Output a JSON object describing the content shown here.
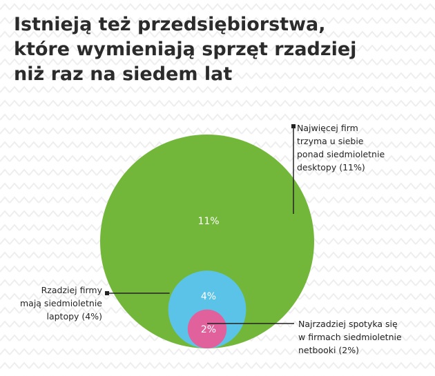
{
  "chart_data": {
    "type": "bubble",
    "title": [
      "Istnieją też przedsiębiorstwa,",
      "które wymieniają sprzęt rzadziej",
      "niż raz na siedem lat"
    ],
    "values": [
      11,
      4,
      2
    ],
    "value_labels": [
      "11%",
      "4%",
      "2%"
    ],
    "colors": [
      "#72b73a",
      "#5cc3e8",
      "#e0619c"
    ],
    "annotations": [
      [
        "Najwięcej firm",
        "trzyma u siebie",
        "ponad siedmioletnie",
        "desktopy (11%)"
      ],
      [
        "Rzadziej firmy",
        "mają siedmioletnie",
        "laptopy (4%)"
      ],
      [
        "Najrzadziej spotyka się",
        "w firmach siedmioletnie",
        "netbooki (2%)"
      ]
    ]
  }
}
